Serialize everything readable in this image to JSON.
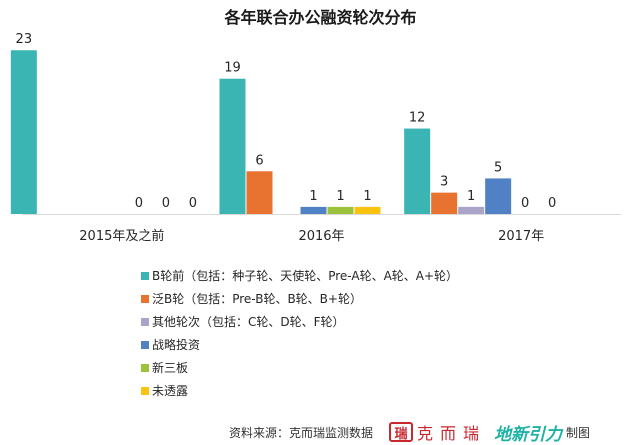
{
  "chart_data": {
    "type": "bar",
    "title": "各年联合办公融资轮次分布",
    "categories": [
      "2015年及之前",
      "2016年",
      "2017年"
    ],
    "ylim": [
      0,
      25
    ],
    "grid": false,
    "legend_position": "bottom-left",
    "series": [
      {
        "name": "B轮前（包括：种子轮、天使轮、Pre-A轮、A轮、A+轮）",
        "color": "#3ab5b3",
        "values": [
          23,
          19,
          12
        ]
      },
      {
        "name": "泛B轮（包括：Pre-B轮、B轮、B+轮）",
        "color": "#e87331",
        "values": [
          0,
          6,
          3
        ]
      },
      {
        "name": "其他轮次（包括：C轮、D轮、F轮）",
        "color": "#a9a4c8",
        "values": [
          0,
          0,
          1
        ]
      },
      {
        "name": "战略投资",
        "color": "#4f81c4",
        "values": [
          0,
          1,
          5
        ]
      },
      {
        "name": "新三板",
        "color": "#9cc13a",
        "values": [
          0,
          1,
          0
        ]
      },
      {
        "name": "未透露",
        "color": "#f9c310",
        "values": [
          0,
          1,
          0
        ]
      }
    ],
    "data_labels": [
      [
        "23",
        "",
        "",
        "0",
        "0",
        "0"
      ],
      [
        "19",
        "6",
        "",
        "1",
        "1",
        "1"
      ],
      [
        "12",
        "3",
        "1",
        "5",
        "0",
        "0"
      ]
    ]
  },
  "footer": {
    "source": "资料来源：克而瑞监测数据",
    "logo1_mark": "瑞",
    "logo1_text": "克而瑞",
    "logo2_text": "地新引力",
    "made_by": "制图"
  }
}
